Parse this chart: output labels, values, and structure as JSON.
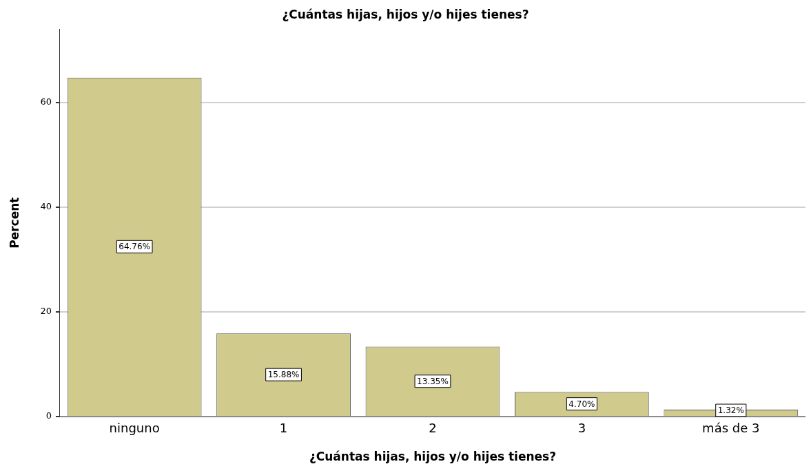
{
  "chart_data": {
    "type": "bar",
    "title": "¿Cuántas hijas, hijos y/o hijes tienes?",
    "xlabel": "¿Cuántas hijas, hijos y/o hijes tienes?",
    "ylabel": "Percent",
    "categories": [
      "ninguno",
      "1",
      "2",
      "3",
      "más de 3"
    ],
    "values": [
      64.76,
      15.88,
      13.35,
      4.7,
      1.32
    ],
    "value_labels": [
      "64.76%",
      "15.88%",
      "13.35%",
      "4.70%",
      "1.32%"
    ],
    "color": "#d0cb8c",
    "ylim": [
      0,
      74
    ],
    "yticks": [
      0,
      20,
      40,
      60
    ],
    "grid": "y",
    "legend": false
  }
}
